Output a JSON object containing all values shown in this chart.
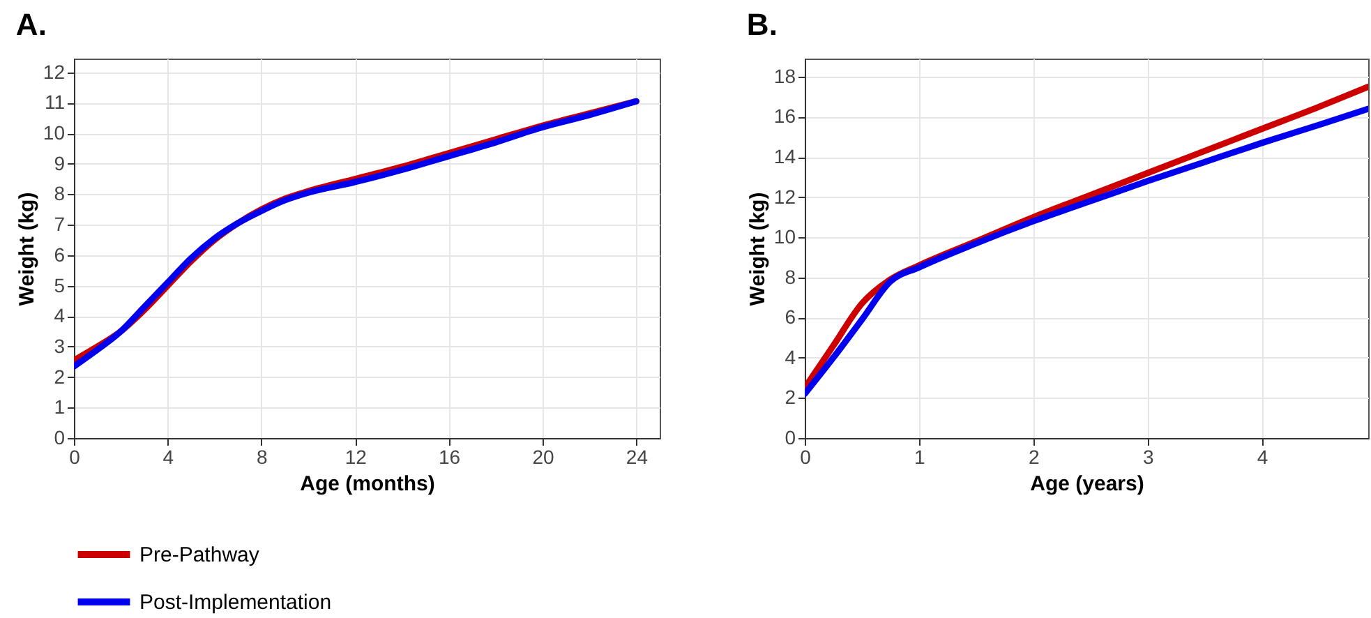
{
  "chart_data": [
    {
      "type": "line",
      "title": "A.",
      "xlabel": "Age (months)",
      "ylabel": "Weight (kg)",
      "x": [
        0,
        1,
        2,
        3,
        4,
        5,
        6,
        7,
        8,
        9,
        10,
        12,
        14,
        16,
        18,
        20,
        22,
        24
      ],
      "xlim": [
        0,
        25
      ],
      "ylim": [
        0,
        12.45
      ],
      "xticks": [
        0,
        4,
        8,
        12,
        16,
        20,
        24
      ],
      "yticks": [
        0,
        1,
        2,
        3,
        4,
        5,
        6,
        7,
        8,
        9,
        10,
        11,
        12
      ],
      "grid": true,
      "legend": "bottom",
      "line_style": "solid",
      "series": [
        {
          "name": "Pre-Pathway",
          "color": "#cc0000",
          "values": [
            2.55,
            3.0,
            3.5,
            4.2,
            5.0,
            5.8,
            6.5,
            7.05,
            7.5,
            7.85,
            8.1,
            8.5,
            8.9,
            9.35,
            9.8,
            10.25,
            10.65,
            11.05
          ]
        },
        {
          "name": "Post-Implementation",
          "color": "#0000ee",
          "values": [
            2.35,
            2.9,
            3.5,
            4.3,
            5.1,
            5.9,
            6.55,
            7.05,
            7.45,
            7.8,
            8.05,
            8.4,
            8.8,
            9.25,
            9.7,
            10.2,
            10.6,
            11.05
          ]
        }
      ]
    },
    {
      "type": "line",
      "title": "B.",
      "xlabel": "Age (years)",
      "ylabel": "Weight (kg)",
      "x": [
        0,
        0.25,
        0.5,
        0.75,
        1,
        1.5,
        2,
        2.5,
        3,
        3.5,
        4,
        4.5,
        4.93
      ],
      "xlim": [
        0,
        4.93
      ],
      "ylim": [
        0,
        18.9
      ],
      "xticks": [
        0,
        1,
        2,
        3,
        4
      ],
      "yticks": [
        0,
        2,
        4,
        6,
        8,
        10,
        12,
        14,
        16,
        18
      ],
      "grid": true,
      "line_style": "solid",
      "series": [
        {
          "color": "#cc0000",
          "values": [
            2.5,
            4.6,
            6.7,
            7.9,
            8.6,
            9.8,
            11.0,
            12.1,
            13.2,
            14.3,
            15.4,
            16.5,
            17.5
          ]
        },
        {
          "color": "#0000ee",
          "values": [
            2.2,
            4.0,
            5.9,
            7.8,
            8.5,
            9.7,
            10.8,
            11.8,
            12.8,
            13.75,
            14.7,
            15.6,
            16.4
          ]
        }
      ]
    }
  ]
}
